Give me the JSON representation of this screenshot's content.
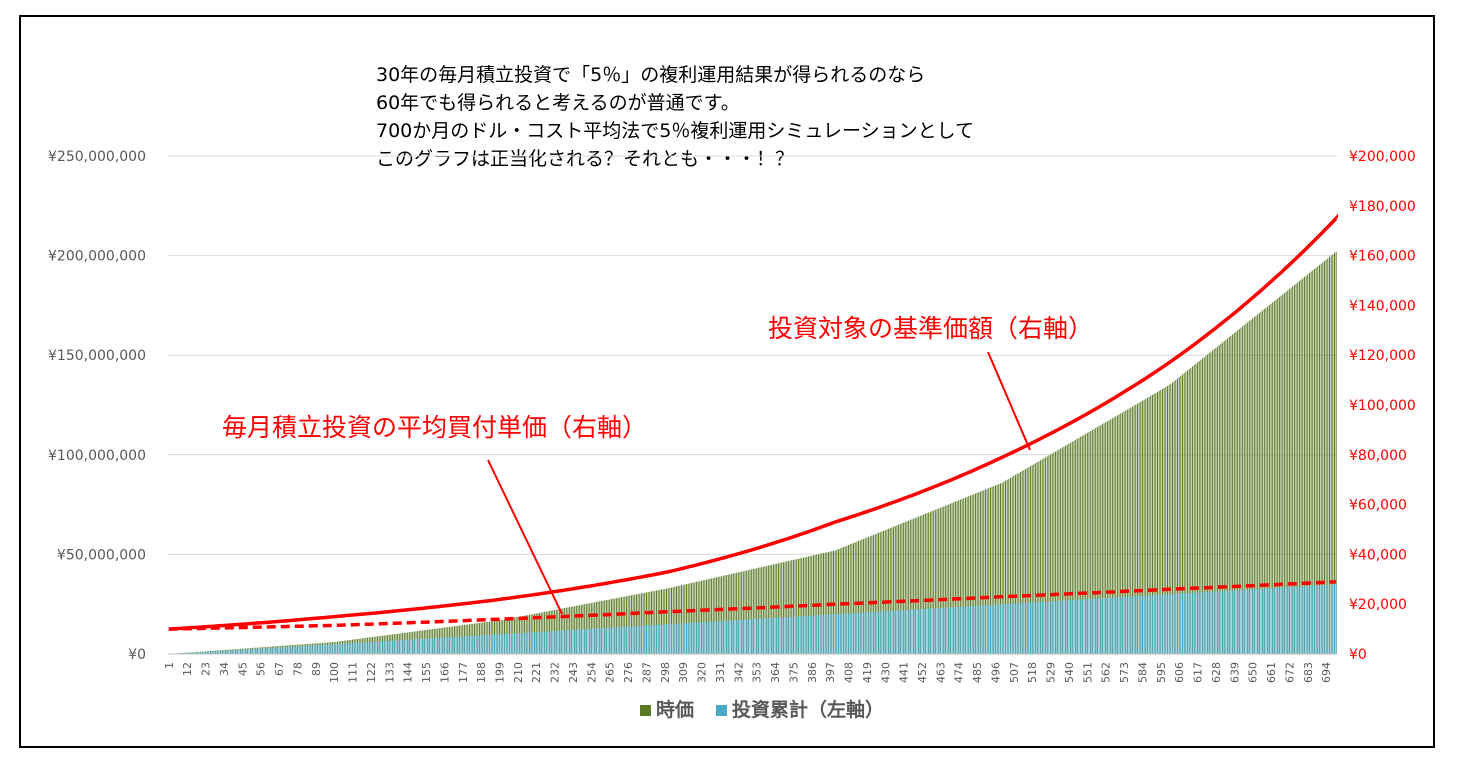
{
  "chart_data": {
    "type": "bar",
    "note_lines": [
      "30年の毎月積立投資で「5％」の複利運用結果が得られるのなら",
      "60年でも得られると考えるのが普通です。",
      "700か月のドル・コスト平均法で5％複利運用シミュレーションとして",
      "このグラフは正当化される？それとも・・・！？"
    ],
    "months": 700,
    "x_tick_labels": [
      "1",
      "12",
      "23",
      "34",
      "45",
      "56",
      "67",
      "78",
      "89",
      "100",
      "111",
      "122",
      "133",
      "144",
      "155",
      "166",
      "177",
      "188",
      "199",
      "210",
      "221",
      "232",
      "243",
      "254",
      "265",
      "276",
      "287",
      "298",
      "309",
      "320",
      "331",
      "342",
      "353",
      "364",
      "375",
      "386",
      "397",
      "408",
      "419",
      "430",
      "441",
      "452",
      "463",
      "474",
      "485",
      "496",
      "507",
      "518",
      "529",
      "540",
      "551",
      "562",
      "573",
      "584",
      "595",
      "606",
      "617",
      "628",
      "639",
      "650",
      "661",
      "672",
      "683",
      "694"
    ],
    "left_axis": {
      "min": 0,
      "max": 250000000,
      "step": 50000000,
      "tick_labels": [
        "¥0",
        "¥50,000,000",
        "¥100,000,000",
        "¥150,000,000",
        "¥200,000,000",
        "¥250,000,000"
      ]
    },
    "right_axis": {
      "min": 0,
      "max": 200000,
      "step": 20000,
      "color": "#ff0000",
      "tick_labels": [
        "¥0",
        "¥20,000",
        "¥40,000",
        "¥60,000",
        "¥80,000",
        "¥100,000",
        "¥120,000",
        "¥140,000",
        "¥160,000",
        "¥180,000",
        "¥200,000"
      ]
    },
    "series": [
      {
        "name": "時価",
        "axis": "left",
        "kind": "bar",
        "color": "#5a7a26",
        "sample_x": [
          1,
          100,
          200,
          300,
          400,
          500,
          600,
          700
        ],
        "sample_values": [
          0,
          6000000,
          17000000,
          33000000,
          52000000,
          86000000,
          135000000,
          202000000
        ]
      },
      {
        "name": "投資累計（左軸）",
        "axis": "left",
        "kind": "bar",
        "color": "#4aa9c4",
        "sample_x": [
          1,
          700
        ],
        "sample_values": [
          0,
          35000000
        ]
      },
      {
        "name": "投資対象の基準価額（右軸）",
        "axis": "right",
        "kind": "line",
        "style": "solid",
        "color": "#ff0000",
        "sample_x": [
          1,
          100,
          200,
          300,
          400,
          500,
          600,
          700
        ],
        "sample_values": [
          10000,
          15000,
          22000,
          33000,
          53000,
          79000,
          117000,
          175000
        ]
      },
      {
        "name": "毎月積立投資の平均買付単価（右軸）",
        "axis": "right",
        "kind": "line",
        "style": "dashed",
        "color": "#ff0000",
        "sample_x": [
          1,
          100,
          200,
          300,
          400,
          500,
          600,
          700
        ],
        "sample_values": [
          10000,
          11500,
          14000,
          17000,
          20000,
          23000,
          26000,
          29000
        ]
      }
    ],
    "annotations": [
      {
        "text": "投資対象の基準価額（右軸）",
        "color": "#ff0000",
        "points_to_series": "投資対象の基準価額（右軸）"
      },
      {
        "text": "毎月積立投資の平均買付単価（右軸）",
        "color": "#ff0000",
        "points_to_series": "毎月積立投資の平均買付単価（右軸）"
      }
    ],
    "legend": {
      "position": "bottom",
      "entries": [
        {
          "label": "時価",
          "color": "#5a7a26"
        },
        {
          "label": "投資累計（左軸）",
          "color": "#4aa9c4"
        }
      ]
    },
    "grid": true
  }
}
